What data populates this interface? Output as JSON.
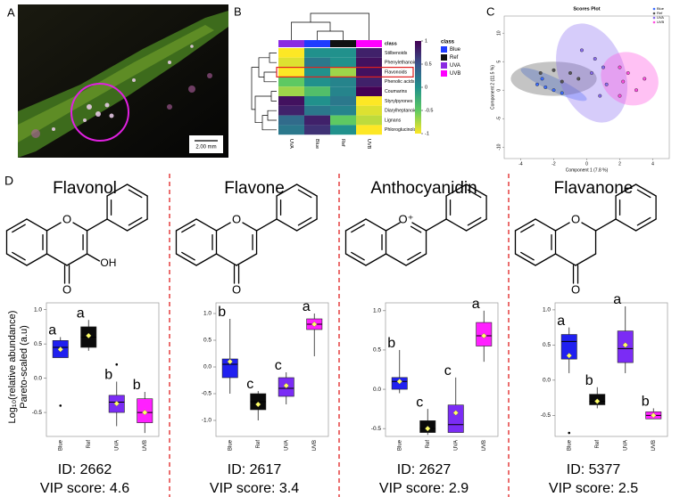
{
  "panel_a": {
    "label": "A",
    "scale_bar": "2.00 mm"
  },
  "panel_b": {
    "label": "B",
    "class_title": "class",
    "legend_title": "class",
    "columns": [
      "UVA",
      "Blue",
      "Ref",
      "UVB"
    ],
    "column_colors": [
      "#8a2be2",
      "#1f3bff",
      "#111111",
      "#ff00ff"
    ],
    "rows": [
      "Stilbenoids",
      "Phenylethanoids",
      "Flavonoids",
      "Phenolic acids",
      "Coumarins",
      "Styrylpyrones",
      "Diarylheptanoids",
      "Lignans",
      "Phloroglucinols"
    ],
    "highlight_row": 2,
    "cells": [
      [
        -1,
        0,
        0,
        0.8
      ],
      [
        -0.9,
        0.2,
        0,
        0.9
      ],
      [
        -1,
        0,
        -0.7,
        0.9
      ],
      [
        -0.5,
        0,
        0.1,
        0.8
      ],
      [
        -0.7,
        -0.4,
        0.1,
        1
      ],
      [
        0.9,
        0,
        0.2,
        -1
      ],
      [
        0.8,
        0.2,
        0.1,
        -0.9
      ],
      [
        0.3,
        0.8,
        -0.5,
        -0.8
      ],
      [
        0.2,
        0.7,
        0,
        -1
      ]
    ],
    "colorbar_ticks": [
      1,
      0.5,
      0,
      -0.5,
      -1
    ],
    "legend": [
      "Blue",
      "Ref",
      "UVA",
      "UVB"
    ],
    "legend_colors": [
      "#1f3bff",
      "#111111",
      "#8a2be2",
      "#ff00ff"
    ]
  },
  "panel_c": {
    "label": "C",
    "title": "Scores Plot",
    "xlabel": "Component 1 (7.8 %)",
    "ylabel": "Component 2 (11.5 %)",
    "xlim": [
      -5,
      5
    ],
    "ylim": [
      -12,
      13
    ],
    "xticks": [
      -4,
      -2,
      0,
      2,
      4
    ],
    "yticks": [
      -10,
      -5,
      0,
      5,
      10
    ],
    "series": [
      {
        "name": "Blue",
        "color": "#3b6cff",
        "x": [
          -3,
          -2.5,
          -2,
          -1.5,
          -2.7
        ],
        "y": [
          1,
          0.5,
          0,
          -0.5,
          2
        ],
        "ellipse": {
          "cx": -2,
          "cy": 1,
          "rx": 2.2,
          "ry": 1.2,
          "angle": 25
        }
      },
      {
        "name": "Ref",
        "color": "#555555",
        "x": [
          -2.8,
          -2,
          -1,
          -1.5,
          -0.5
        ],
        "y": [
          3,
          3.5,
          3,
          1.5,
          2
        ],
        "ellipse": {
          "cx": -2,
          "cy": 2,
          "rx": 2.6,
          "ry": 3,
          "angle": 0
        }
      },
      {
        "name": "UVA",
        "color": "#8a6cf0",
        "x": [
          -0.3,
          0.5,
          1,
          0.3,
          1.2,
          0.8
        ],
        "y": [
          7,
          5.5,
          4,
          3,
          1,
          -1
        ],
        "ellipse": {
          "cx": 0.3,
          "cy": 3,
          "rx": 2,
          "ry": 9,
          "angle": -20
        }
      },
      {
        "name": "UVB",
        "color": "#ff4de0",
        "x": [
          2,
          2.5,
          3.5,
          2.2,
          3,
          2
        ],
        "y": [
          4,
          3,
          2,
          1.5,
          0,
          -1
        ],
        "ellipse": {
          "cx": 2.6,
          "cy": 2,
          "rx": 1.8,
          "ry": 4.5,
          "angle": 30
        }
      }
    ]
  },
  "panel_d": {
    "label": "D",
    "y_label_lines": [
      "Log₁₀(relative abundance)",
      "Pareto-scaled (a.u)"
    ],
    "groups": [
      "Blue",
      "Ref",
      "UVA",
      "UVB"
    ],
    "group_colors": [
      "#2020f0",
      "#0a0a0a",
      "#7b2cf5",
      "#ff20ff"
    ],
    "mean_color": "#ffff66",
    "compounds": [
      {
        "name": "Flavonol",
        "ring_oxygen": "O",
        "carbonyl": "O",
        "hydroxyl": "OH",
        "double_bond_c2_c3": true,
        "aromatic_ring_c": false,
        "ylim": [
          -0.85,
          1.1
        ],
        "yticks": [
          {
            "value": 1,
            "label": "1.0"
          },
          {
            "value": 0.5,
            "label": "0.5"
          },
          {
            "value": 0,
            "label": "0.0"
          },
          {
            "value": -0.5,
            "label": "-0.5"
          }
        ],
        "boxes": [
          {
            "min": 0.3,
            "q1": 0.3,
            "median": 0.45,
            "q3": 0.55,
            "max": 0.6,
            "mean": 0.42,
            "letter": "a",
            "outliers": [
              -0.4
            ]
          },
          {
            "min": 0.4,
            "q1": 0.45,
            "median": 0.6,
            "q3": 0.75,
            "max": 0.85,
            "mean": 0.62,
            "letter": "a"
          },
          {
            "min": -0.7,
            "q1": -0.5,
            "median": -0.35,
            "q3": -0.25,
            "max": -0.05,
            "mean": -0.37,
            "letter": "b",
            "outliers": [
              0.2
            ]
          },
          {
            "min": -0.8,
            "q1": -0.65,
            "median": -0.5,
            "q3": -0.3,
            "max": -0.2,
            "mean": -0.5,
            "letter": "b"
          }
        ],
        "id_label": "ID: 2662",
        "vip_label": "VIP score: 4.6"
      },
      {
        "name": "Flavone",
        "ring_oxygen": "O",
        "carbonyl": "O",
        "double_bond_c2_c3": true,
        "aromatic_ring_c": false,
        "ylim": [
          -1.3,
          1.2
        ],
        "yticks": [
          {
            "value": 1,
            "label": "1.0"
          },
          {
            "value": 0.5,
            "label": "0.5"
          },
          {
            "value": 0,
            "label": "0.0"
          },
          {
            "value": -0.5,
            "label": "-0.5"
          },
          {
            "value": -1,
            "label": "-1.0"
          }
        ],
        "boxes": [
          {
            "min": -0.5,
            "q1": -0.2,
            "median": 0.05,
            "q3": 0.15,
            "max": 0.9,
            "mean": 0.1,
            "letter": "b"
          },
          {
            "min": -1,
            "q1": -0.8,
            "median": -0.65,
            "q3": -0.5,
            "max": -0.45,
            "mean": -0.7,
            "letter": "c"
          },
          {
            "min": -0.7,
            "q1": -0.55,
            "median": -0.4,
            "q3": -0.2,
            "max": -0.1,
            "mean": -0.35,
            "letter": "c"
          },
          {
            "min": 0.2,
            "q1": 0.7,
            "median": 0.8,
            "q3": 0.9,
            "max": 1,
            "mean": 0.8,
            "letter": "a"
          }
        ],
        "id_label": "ID: 2617",
        "vip_label": "VIP score: 3.4"
      },
      {
        "name": "Anthocyanidin",
        "ring_oxygen": "O⁺",
        "double_bond_c2_c3": false,
        "aromatic_ring_c": true,
        "ylim": [
          -0.6,
          1.1
        ],
        "yticks": [
          {
            "value": 1,
            "label": "1.0"
          },
          {
            "value": 0.5,
            "label": "0.5"
          },
          {
            "value": 0,
            "label": "0.0"
          },
          {
            "value": -0.5,
            "label": "-0.5"
          }
        ],
        "boxes": [
          {
            "min": -0.05,
            "q1": 0,
            "median": 0.1,
            "q3": 0.15,
            "max": 0.5,
            "mean": 0.1,
            "letter": "b"
          },
          {
            "min": -0.58,
            "q1": -0.55,
            "median": -0.5,
            "q3": -0.4,
            "max": -0.25,
            "mean": -0.5,
            "letter": "c"
          },
          {
            "min": -0.55,
            "q1": -0.55,
            "median": -0.45,
            "q3": -0.2,
            "max": 0.15,
            "mean": -0.3,
            "letter": "c"
          },
          {
            "min": 0.35,
            "q1": 0.55,
            "median": 0.68,
            "q3": 0.85,
            "max": 1,
            "mean": 0.68,
            "letter": "a"
          }
        ],
        "id_label": "ID: 2627",
        "vip_label": "VIP score: 2.9"
      },
      {
        "name": "Flavanone",
        "ring_oxygen": "O",
        "carbonyl": "O",
        "double_bond_c2_c3": false,
        "aromatic_ring_c": false,
        "ylim": [
          -0.8,
          1.1
        ],
        "yticks": [
          {
            "value": 1,
            "label": "1.0"
          },
          {
            "value": 0.5,
            "label": "0.5"
          },
          {
            "value": 0,
            "label": "0.0"
          },
          {
            "value": -0.5,
            "label": "-0.5"
          }
        ],
        "boxes": [
          {
            "min": 0.1,
            "q1": 0.3,
            "median": 0.55,
            "q3": 0.65,
            "max": 0.75,
            "mean": 0.35,
            "letter": "a",
            "outliers": [
              -0.75
            ]
          },
          {
            "min": -0.4,
            "q1": -0.35,
            "median": -0.3,
            "q3": -0.2,
            "max": -0.1,
            "mean": -0.3,
            "letter": "b"
          },
          {
            "min": 0.1,
            "q1": 0.25,
            "median": 0.45,
            "q3": 0.7,
            "max": 1.05,
            "mean": 0.5,
            "letter": "a"
          },
          {
            "min": -0.55,
            "q1": -0.55,
            "median": -0.5,
            "q3": -0.45,
            "max": -0.4,
            "mean": -0.5,
            "letter": "b"
          }
        ],
        "id_label": "ID: 5377",
        "vip_label": "VIP score: 2.5"
      }
    ]
  }
}
